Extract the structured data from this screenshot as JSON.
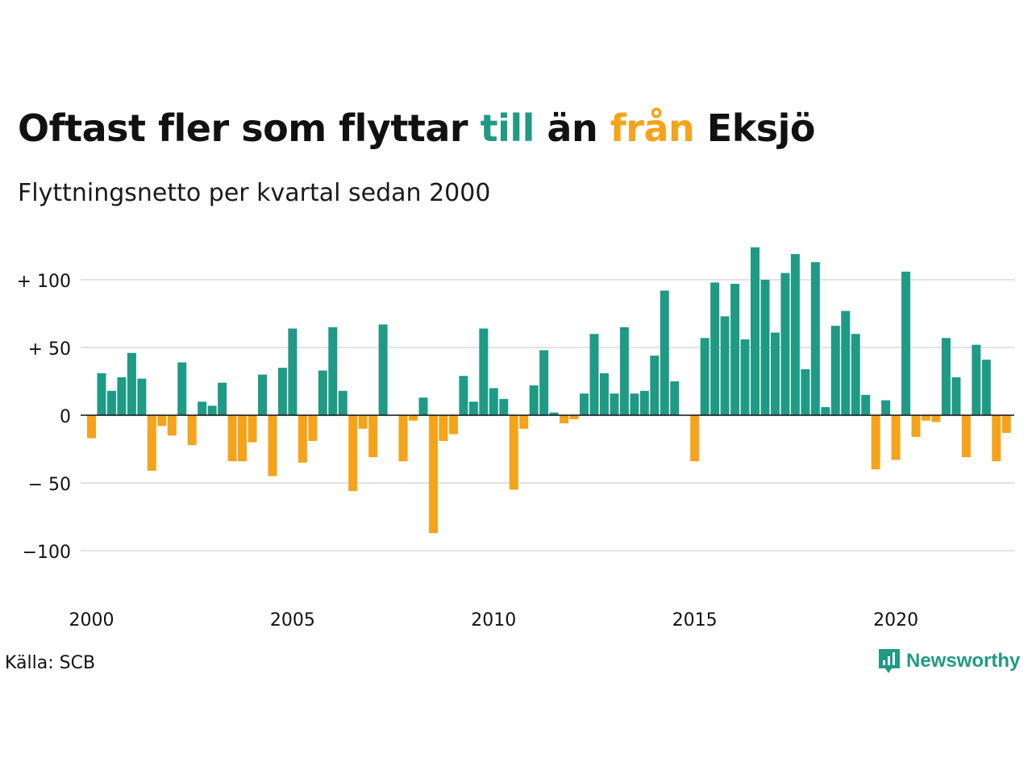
{
  "title": {
    "part1": "Oftast fler som flyttar ",
    "till": "till",
    "part2": " än ",
    "fran": "från",
    "part3": " Eksjö"
  },
  "subtitle": "Flyttningsnetto per kvartal sedan 2000",
  "source": "Källa: SCB",
  "brand": {
    "name": "Newsworthy",
    "icon": "newsworthy-logo-icon"
  },
  "colors": {
    "positive": "#1f9a85",
    "negative": "#f5a31a",
    "gridline": "#e2e2e2",
    "zero_line": "#111111",
    "till": "#1f9a85",
    "fran": "#f5a31a"
  },
  "chart_data": {
    "type": "bar",
    "title": "Oftast fler som flyttar till än från Eksjö",
    "subtitle": "Flyttningsnetto per kvartal sedan 2000",
    "xlabel": "",
    "ylabel": "",
    "start": "2000 Q1",
    "ylim": [
      -125,
      125
    ],
    "yticks": [
      {
        "value": 100,
        "label": "+ 100"
      },
      {
        "value": 50,
        "label": "+  50"
      },
      {
        "value": 0,
        "label": "0"
      },
      {
        "value": -50,
        "label": "− 50"
      },
      {
        "value": -100,
        "label": "−100"
      }
    ],
    "xticks": [
      {
        "year": 2000,
        "label": "2000"
      },
      {
        "year": 2005,
        "label": "2005"
      },
      {
        "year": 2010,
        "label": "2010"
      },
      {
        "year": 2015,
        "label": "2015"
      },
      {
        "year": 2020,
        "label": "2020"
      }
    ],
    "grid": true,
    "values": [
      -17,
      31,
      18,
      28,
      46,
      27,
      -41,
      -8,
      -15,
      39,
      -22,
      10,
      7,
      24,
      -34,
      -34,
      -20,
      30,
      -45,
      35,
      64,
      -35,
      -19,
      33,
      65,
      18,
      -56,
      -10,
      -31,
      67,
      0,
      -34,
      -4,
      13,
      -87,
      -19,
      -14,
      29,
      10,
      64,
      20,
      12,
      -55,
      -10,
      22,
      48,
      2,
      -6,
      -3,
      16,
      60,
      31,
      16,
      65,
      16,
      18,
      44,
      92,
      25,
      0,
      -34,
      57,
      98,
      73,
      97,
      56,
      124,
      100,
      61,
      105,
      119,
      34,
      113,
      6,
      66,
      77,
      60,
      15,
      -40,
      11,
      -33,
      106,
      -16,
      -4,
      -5,
      57,
      28,
      -31,
      52,
      41,
      -34,
      -13
    ]
  }
}
